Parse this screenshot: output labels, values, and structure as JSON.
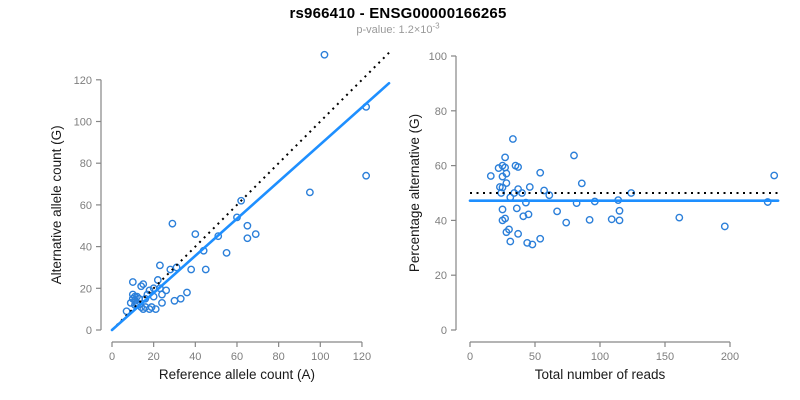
{
  "window": {
    "background": "#ffffff"
  },
  "header": {
    "title": "rs966410 - ENSG00000166265",
    "p_value": {
      "text": "p-value: 1.2×10",
      "exponent": "-3"
    }
  },
  "colors": {
    "point": "#2b7fd9",
    "fit_line": "#1e8fff",
    "reference_line": "#000000",
    "axis": "#868686",
    "tick_label": "#7e7e7e",
    "axis_label": "#1a1a1a",
    "title": "#000000",
    "subtitle": "#9a9a9a"
  },
  "chart_data": [
    {
      "type": "scatter",
      "name": "allele-counts-scatter",
      "xlabel": "Reference allele count (A)",
      "ylabel": "Alternative allele count (G)",
      "xticks": [
        0,
        20,
        40,
        60,
        80,
        100,
        120
      ],
      "yticks": [
        0,
        20,
        40,
        60,
        80,
        100,
        120
      ],
      "xlim": [
        0,
        133
      ],
      "ylim": [
        0,
        133
      ],
      "grid": false,
      "legend": "none",
      "reference_line": {
        "type": "identity",
        "style": "dotted",
        "color": "#000000"
      },
      "fit_line": {
        "type": "linear",
        "slope": 0.89,
        "intercept": 0,
        "style": "solid",
        "color": "#1e8fff"
      },
      "points": [
        [
          102,
          132
        ],
        [
          122,
          107
        ],
        [
          122,
          74
        ],
        [
          95,
          66
        ],
        [
          62,
          62
        ],
        [
          60,
          54
        ],
        [
          65,
          50
        ],
        [
          69,
          46
        ],
        [
          65,
          44
        ],
        [
          51,
          45
        ],
        [
          55,
          37
        ],
        [
          44,
          38
        ],
        [
          29,
          51
        ],
        [
          40,
          46
        ],
        [
          23,
          31
        ],
        [
          28,
          29
        ],
        [
          31,
          30
        ],
        [
          38,
          29
        ],
        [
          45,
          29
        ],
        [
          10,
          23
        ],
        [
          14,
          21
        ],
        [
          15,
          22
        ],
        [
          22,
          24
        ],
        [
          26,
          19
        ],
        [
          24,
          17
        ],
        [
          20,
          16
        ],
        [
          18,
          19
        ],
        [
          20,
          20
        ],
        [
          23,
          20
        ],
        [
          33,
          15
        ],
        [
          36,
          18
        ],
        [
          30,
          14
        ],
        [
          9,
          13
        ],
        [
          10,
          15
        ],
        [
          11,
          14
        ],
        [
          12,
          16
        ],
        [
          10,
          17
        ],
        [
          11,
          12
        ],
        [
          12,
          13
        ],
        [
          14,
          11
        ],
        [
          15,
          10
        ],
        [
          16,
          11
        ],
        [
          18,
          10
        ],
        [
          7,
          9
        ],
        [
          19,
          11
        ],
        [
          24,
          13
        ],
        [
          21,
          10
        ],
        [
          13,
          15
        ],
        [
          16,
          15
        ],
        [
          17,
          17
        ],
        [
          12,
          12
        ],
        [
          11,
          16
        ]
      ]
    },
    {
      "type": "scatter",
      "name": "percentage-vs-depth-scatter",
      "xlabel": "Total number of reads",
      "ylabel": "Percentage alternative (G)",
      "xticks": [
        0,
        50,
        100,
        150,
        200
      ],
      "yticks": [
        0,
        20,
        40,
        60,
        80,
        100
      ],
      "xlim": [
        0,
        237
      ],
      "ylim": [
        0,
        100
      ],
      "grid": false,
      "legend": "none",
      "reference_line": {
        "type": "horizontal",
        "y": 50,
        "style": "dotted",
        "color": "#000000"
      },
      "fit_line": {
        "type": "horizontal",
        "y": 47.2,
        "style": "solid",
        "color": "#1e8fff"
      },
      "points": [
        [
          234,
          56.4
        ],
        [
          229,
          46.7
        ],
        [
          196,
          37.8
        ],
        [
          161,
          41.0
        ],
        [
          124,
          50.0
        ],
        [
          114,
          47.4
        ],
        [
          115,
          43.5
        ],
        [
          115,
          40.0
        ],
        [
          109,
          40.4
        ],
        [
          96,
          46.9
        ],
        [
          92,
          40.2
        ],
        [
          82,
          46.3
        ],
        [
          80,
          63.7
        ],
        [
          86,
          53.5
        ],
        [
          54,
          57.4
        ],
        [
          57,
          50.9
        ],
        [
          61,
          49.2
        ],
        [
          67,
          43.3
        ],
        [
          74,
          39.2
        ],
        [
          33,
          69.7
        ],
        [
          35,
          60.0
        ],
        [
          37,
          59.5
        ],
        [
          46,
          52.2
        ],
        [
          45,
          42.2
        ],
        [
          41,
          41.5
        ],
        [
          36,
          44.4
        ],
        [
          37,
          51.4
        ],
        [
          40,
          50.0
        ],
        [
          43,
          46.5
        ],
        [
          48,
          31.2
        ],
        [
          54,
          33.3
        ],
        [
          44,
          31.8
        ],
        [
          22,
          59.1
        ],
        [
          25,
          60.0
        ],
        [
          25,
          56.0
        ],
        [
          28,
          57.1
        ],
        [
          27,
          63.0
        ],
        [
          23,
          52.2
        ],
        [
          25,
          52.0
        ],
        [
          25,
          44.0
        ],
        [
          25,
          40.0
        ],
        [
          27,
          40.7
        ],
        [
          28,
          35.7
        ],
        [
          16,
          56.2
        ],
        [
          30,
          36.7
        ],
        [
          37,
          35.1
        ],
        [
          31,
          32.3
        ],
        [
          28,
          53.6
        ],
        [
          31,
          48.4
        ],
        [
          34,
          50.0
        ],
        [
          24,
          50.0
        ],
        [
          27,
          59.3
        ]
      ]
    }
  ]
}
